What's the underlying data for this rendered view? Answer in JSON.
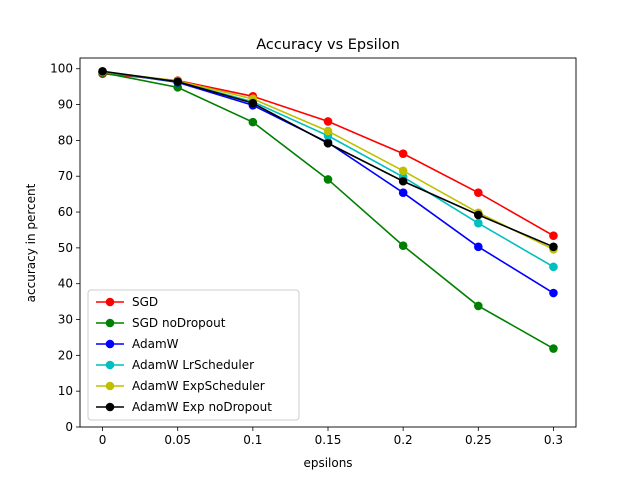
{
  "chart_data": {
    "type": "line",
    "title": "Accuracy vs Epsilon",
    "xlabel": "epsilons",
    "ylabel": "accuracy in percent",
    "x": [
      0,
      0.05,
      0.1,
      0.15,
      0.2,
      0.25,
      0.3
    ],
    "x_tick_labels": [
      "0",
      "0.05",
      "0.1",
      "0.15",
      "0.2",
      "0.25",
      "0.3"
    ],
    "y_ticks": [
      0,
      10,
      20,
      30,
      40,
      50,
      60,
      70,
      80,
      90,
      100
    ],
    "xlim": [
      -0.015,
      0.315
    ],
    "ylim": [
      0,
      103
    ],
    "grid": false,
    "legend_position": "lower-left",
    "series": [
      {
        "name": "SGD",
        "color": "#ff0000",
        "values": [
          98.6,
          96.7,
          92.3,
          85.3,
          76.3,
          65.4,
          53.4
        ]
      },
      {
        "name": "SGD noDropout",
        "color": "#008000",
        "values": [
          98.9,
          94.8,
          85.1,
          69.1,
          50.6,
          33.8,
          21.9
        ]
      },
      {
        "name": "AdamW",
        "color": "#0000ff",
        "values": [
          99.2,
          96.2,
          89.8,
          79.4,
          65.4,
          50.3,
          37.4
        ]
      },
      {
        "name": "AdamW LrScheduler",
        "color": "#00bfbf",
        "values": [
          99.1,
          96.4,
          90.8,
          81.3,
          69.8,
          56.9,
          44.7
        ]
      },
      {
        "name": "AdamW ExpScheduler",
        "color": "#bfbf00",
        "values": [
          99.2,
          96.6,
          91.6,
          82.6,
          71.5,
          59.8,
          49.6
        ]
      },
      {
        "name": "AdamW Exp noDropout",
        "color": "#000000",
        "values": [
          99.3,
          96.4,
          90.4,
          79.2,
          68.6,
          59.2,
          50.3
        ]
      }
    ]
  }
}
